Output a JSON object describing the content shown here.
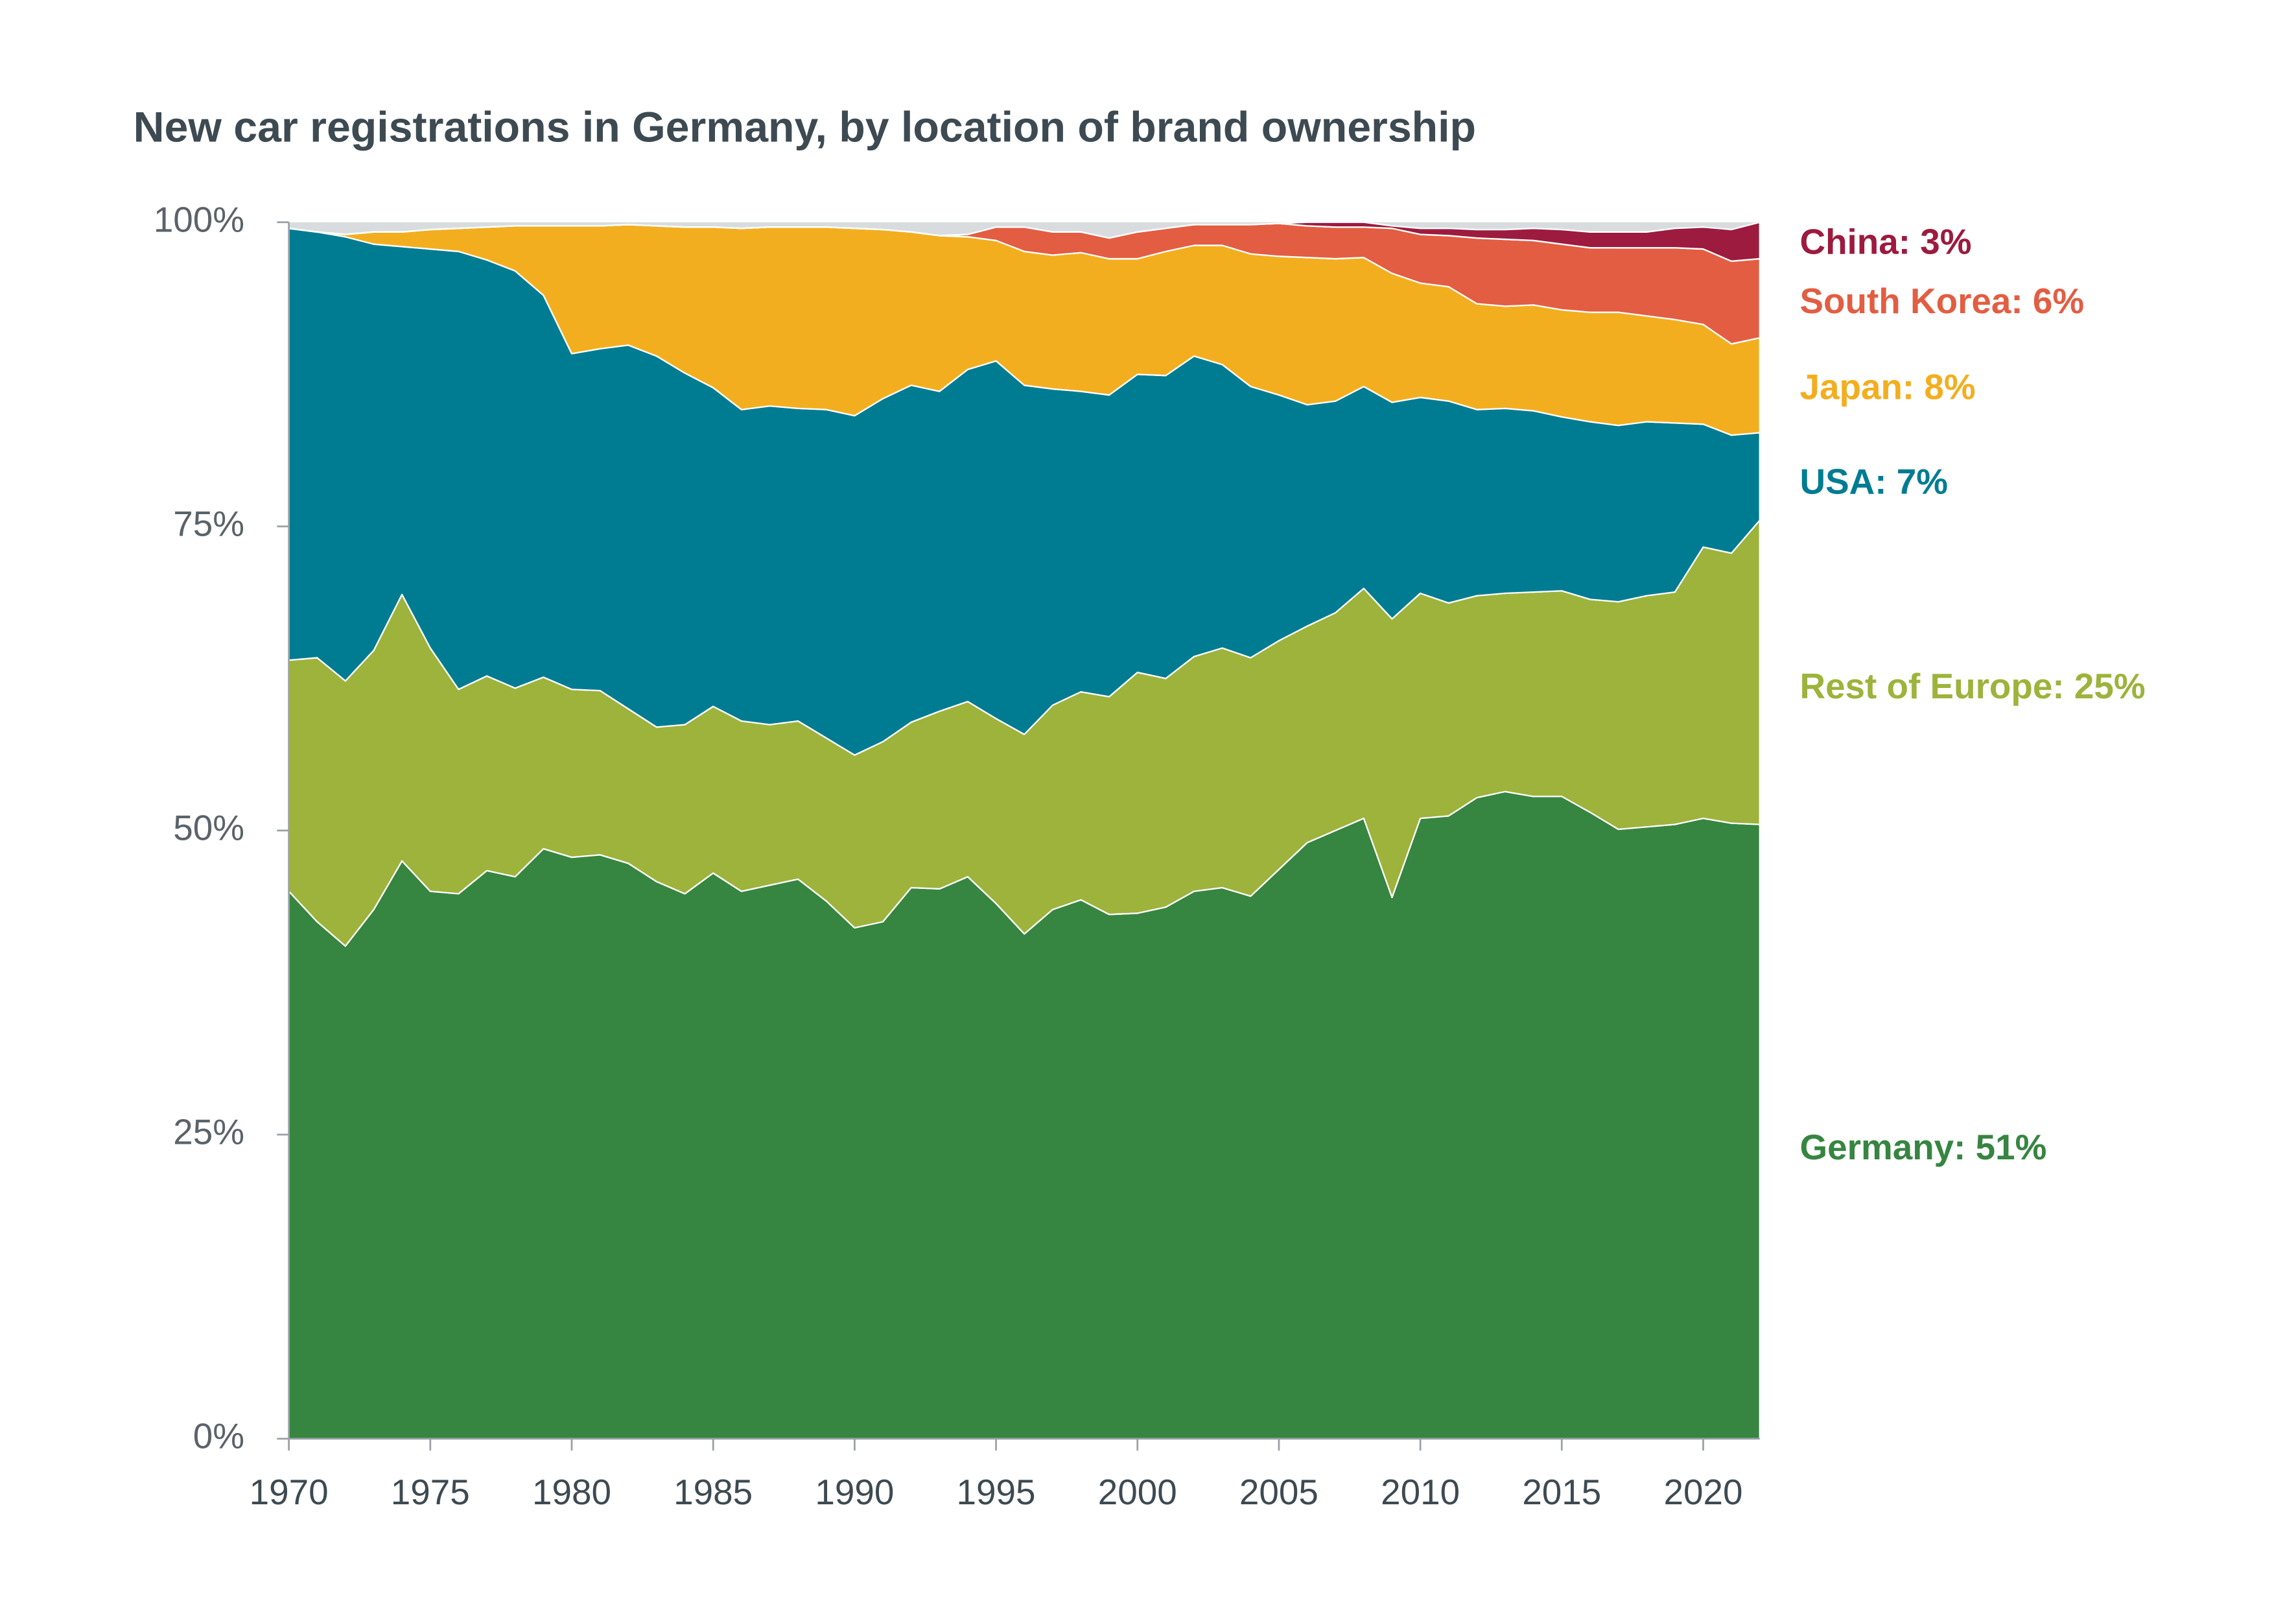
{
  "chart_data": {
    "type": "stacked_area",
    "title": "New car registrations in Germany, by location of brand ownership",
    "x": [
      1970,
      1971,
      1972,
      1973,
      1974,
      1975,
      1976,
      1977,
      1978,
      1979,
      1980,
      1981,
      1982,
      1983,
      1984,
      1985,
      1986,
      1987,
      1988,
      1989,
      1990,
      1991,
      1992,
      1993,
      1994,
      1995,
      1996,
      1997,
      1998,
      1999,
      2000,
      2001,
      2002,
      2003,
      2004,
      2005,
      2006,
      2007,
      2008,
      2009,
      2010,
      2011,
      2012,
      2013,
      2014,
      2015,
      2016,
      2017,
      2018,
      2019,
      2020,
      2021,
      2022
    ],
    "xlim": [
      1970,
      2022
    ],
    "xticks": [
      1970,
      1975,
      1980,
      1985,
      1990,
      1995,
      2000,
      2005,
      2010,
      2015,
      2020
    ],
    "ylim": [
      0,
      100
    ],
    "yticks": [
      {
        "value": 0,
        "label": "0%"
      },
      {
        "value": 25,
        "label": "25%"
      },
      {
        "value": 50,
        "label": "50%"
      },
      {
        "value": 75,
        "label": "75%"
      },
      {
        "value": 100,
        "label": "100%"
      }
    ],
    "series": [
      {
        "name": "Germany: 51%",
        "color": "#368541",
        "values": [
          45,
          42.5,
          40.5,
          43.5,
          47.5,
          45,
          44.8,
          46.7,
          46.2,
          48.5,
          47.8,
          48,
          47.3,
          45.8,
          44.8,
          46.5,
          45,
          45.5,
          46,
          44.2,
          42,
          42.5,
          45.3,
          45.2,
          46.2,
          44,
          41.5,
          43.5,
          44.3,
          43.1,
          43.2,
          43.7,
          45,
          45.3,
          44.6,
          46.8,
          49,
          50,
          51,
          44.5,
          51,
          51.2,
          52.7,
          53.2,
          52.8,
          52.8,
          51.5,
          50.1,
          50.3,
          50.5,
          51,
          50.6,
          50.5
        ]
      },
      {
        "name": "Rest of Europe: 25%",
        "color": "#9db33b",
        "values": [
          19,
          21.7,
          21.8,
          21.3,
          21.9,
          20,
          16.8,
          16,
          15.5,
          14.1,
          13.8,
          13.5,
          12.7,
          12.7,
          13.9,
          13.7,
          14,
          13.2,
          13,
          13.4,
          14.2,
          14.8,
          13.6,
          14.6,
          14.4,
          15.2,
          16.4,
          16.8,
          17.1,
          17.9,
          19.8,
          18.8,
          19.3,
          19.7,
          19.6,
          18.8,
          17.8,
          17.9,
          18.9,
          22.9,
          18.5,
          17.5,
          16.6,
          16.3,
          16.8,
          16.9,
          17.5,
          18.7,
          19,
          19.1,
          22.3,
          22.2,
          25
        ]
      },
      {
        "name": "USA: 7%",
        "color": "#007c92",
        "values": [
          35.5,
          35,
          36.5,
          33.4,
          28.6,
          32.8,
          36,
          34.2,
          34.3,
          31.4,
          27.6,
          28.1,
          29.9,
          30.5,
          28.9,
          26.2,
          25.6,
          26.2,
          25.7,
          27,
          27.9,
          28.2,
          27.7,
          26.3,
          27.3,
          29.4,
          28.7,
          26,
          24.7,
          24.8,
          24.5,
          24.9,
          24.7,
          23.3,
          22.3,
          20.2,
          18.2,
          17.4,
          16.6,
          17.8,
          16.1,
          16.6,
          15.3,
          15.2,
          14.9,
          14.3,
          14.6,
          14.5,
          14.3,
          13.9,
          10.1,
          9.7,
          7.2
        ]
      },
      {
        "name": "Japan: 8%",
        "color": "#f3ae1f",
        "values": [
          0,
          0,
          0.2,
          1,
          1.2,
          1.6,
          1.9,
          2.7,
          3.7,
          5.7,
          10.5,
          10.1,
          9.9,
          10.7,
          12,
          13.2,
          14.9,
          14.7,
          14.9,
          15,
          15.4,
          13.9,
          12.6,
          12.8,
          10.9,
          9.9,
          11,
          11,
          11.4,
          11.2,
          9.5,
          10.2,
          9.1,
          9.8,
          10.9,
          11.4,
          12.1,
          11.7,
          10.6,
          10.6,
          9.4,
          9.4,
          8.7,
          8.4,
          8.7,
          8.8,
          9,
          9.3,
          8.7,
          8.5,
          8.2,
          7.5,
          7.8
        ]
      },
      {
        "name": "South Korea: 6%",
        "color": "#e35d42",
        "values": [
          0,
          0,
          0,
          0,
          0,
          0,
          0,
          0,
          0,
          0,
          0,
          0,
          0,
          0,
          0,
          0,
          0,
          0,
          0,
          0,
          0,
          0,
          0,
          0,
          0.2,
          1.1,
          2,
          1.9,
          1.7,
          1.7,
          2.2,
          1.9,
          1.7,
          1.7,
          2.4,
          2.7,
          2.6,
          2.6,
          2.5,
          3.7,
          4,
          4.2,
          5.4,
          5.5,
          5.3,
          5.4,
          5.3,
          5.3,
          5.6,
          5.9,
          6.2,
          6.8,
          6.5
        ]
      },
      {
        "name": "China: 3%",
        "color": "#9c1b3e",
        "values": [
          0,
          0,
          0,
          0,
          0,
          0,
          0,
          0,
          0,
          0,
          0,
          0,
          0,
          0,
          0,
          0,
          0,
          0,
          0,
          0,
          0,
          0,
          0,
          0,
          0,
          0,
          0,
          0,
          0,
          0,
          0,
          0,
          0,
          0,
          0,
          0,
          0.3,
          0.4,
          0.4,
          0.2,
          0.5,
          0.6,
          0.7,
          0.8,
          1,
          1.2,
          1.3,
          1.3,
          1.3,
          1.6,
          1.8,
          2.6,
          3
        ]
      }
    ]
  }
}
